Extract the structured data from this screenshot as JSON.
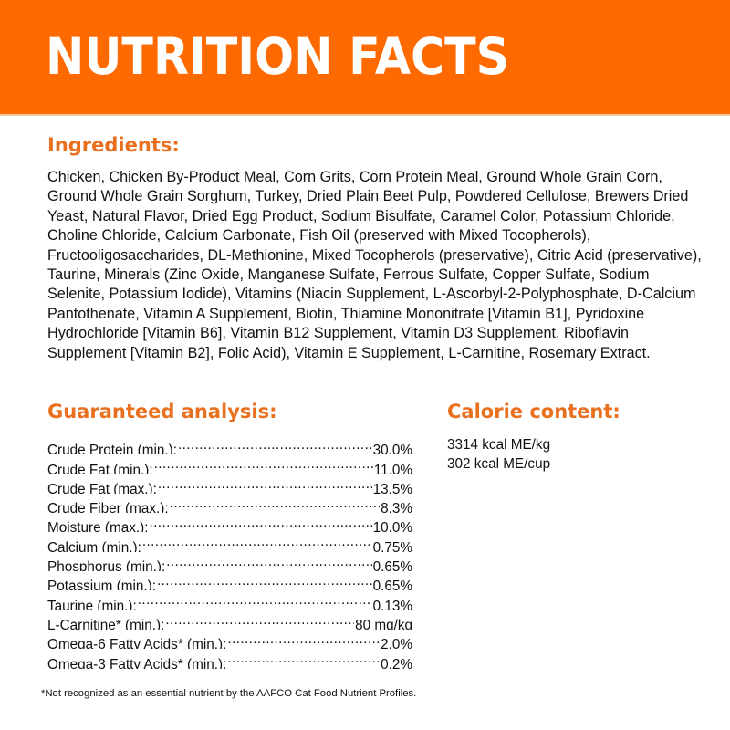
{
  "header": {
    "title": "NUTRITION FACTS",
    "background_color": "#ff6a00",
    "title_color": "#ffffff"
  },
  "accent_color": "#e8701e",
  "ingredients": {
    "heading": "Ingredients:",
    "text": "Chicken, Chicken By-Product Meal, Corn Grits, Corn Protein Meal, Ground Whole Grain Corn, Ground Whole Grain Sorghum, Turkey, Dried Plain Beet Pulp, Powdered Cellulose, Brewers Dried Yeast, Natural Flavor, Dried Egg Product, Sodium Bisulfate, Caramel Color, Potassium Chloride, Choline Chloride, Calcium Carbonate, Fish Oil (preserved with Mixed Tocopherols), Fructooligosaccharides, DL-Methionine, Mixed Tocopherols (preservative), Citric Acid (preservative), Taurine, Minerals (Zinc Oxide, Manganese Sulfate, Ferrous Sulfate, Copper Sulfate, Sodium Selenite, Potassium Iodide), Vitamins (Niacin Supplement, L-Ascorbyl-2-Polyphosphate, D-Calcium Pantothenate, Vitamin A Supplement, Biotin, Thiamine Mononitrate [Vitamin B1], Pyridoxine Hydrochloride [Vitamin B6], Vitamin B12 Supplement, Vitamin D3 Supplement, Riboflavin Supplement [Vitamin B2], Folic Acid), Vitamin E Supplement, L-Carnitine, Rosemary Extract."
  },
  "guaranteed_analysis": {
    "heading": "Guaranteed analysis:",
    "rows": [
      {
        "label": "Crude Protein (min.):",
        "value": "30.0%"
      },
      {
        "label": "Crude Fat (min.):",
        "value": "11.0%"
      },
      {
        "label": "Crude Fat (max.):",
        "value": "13.5%"
      },
      {
        "label": "Crude Fiber (max.):",
        "value": "8.3%"
      },
      {
        "label": "Moisture (max.):",
        "value": "10.0%"
      },
      {
        "label": "Calcium (min.):",
        "value": "0.75%"
      },
      {
        "label": "Phosphorus (min.):",
        "value": "0.65%"
      },
      {
        "label": "Potassium (min.):",
        "value": "0.65%"
      },
      {
        "label": "Taurine (min.):",
        "value": "0.13%"
      },
      {
        "label": "L-Carnitine* (min.):",
        "value": "80 mg/kg"
      },
      {
        "label": "Omega-6 Fatty Acids* (min.):",
        "value": "2.0%"
      },
      {
        "label": "Omega-3 Fatty Acids* (min.):",
        "value": "0.2%"
      }
    ]
  },
  "calorie_content": {
    "heading": "Calorie content:",
    "rows": [
      "3314 kcal ME/kg",
      "302 kcal ME/cup"
    ]
  },
  "footnote": "*Not recognized as an essential nutrient by the AAFCO Cat Food Nutrient Profiles."
}
